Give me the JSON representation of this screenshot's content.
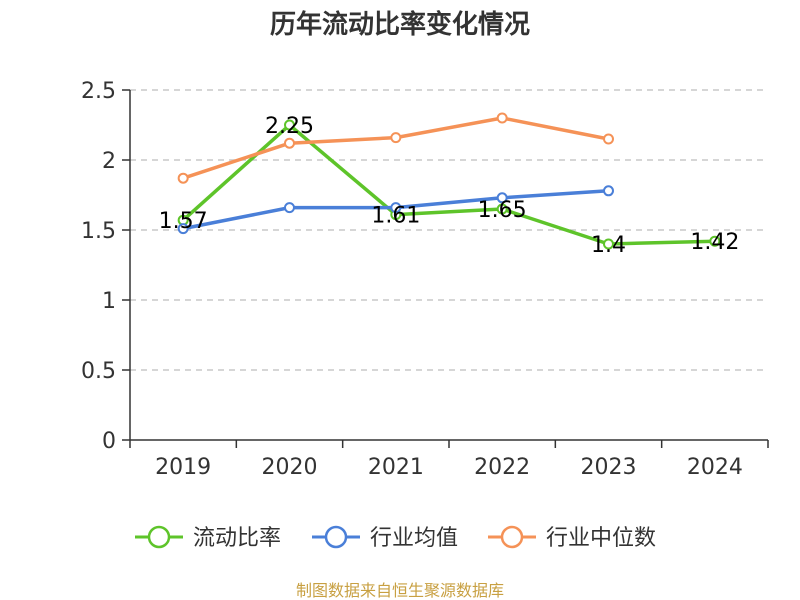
{
  "chart_data": {
    "type": "line",
    "title": "历年流动比率变化情况",
    "categories": [
      "2019",
      "2020",
      "2021",
      "2022",
      "2023",
      "2024"
    ],
    "ylim": [
      0,
      2.5
    ],
    "yticks": [
      "0",
      "0.5",
      "1",
      "1.5",
      "2",
      "2.5"
    ],
    "grid": true,
    "legend_position": "bottom",
    "series": [
      {
        "name": "流动比率",
        "color": "#5ec42a",
        "values": [
          1.57,
          2.25,
          1.61,
          1.65,
          1.4,
          1.42
        ],
        "labels": [
          "1.57",
          "2.25",
          "1.61",
          "1.65",
          "1.4",
          "1.42"
        ]
      },
      {
        "name": "行业均值",
        "color": "#4a7fd8",
        "values": [
          1.51,
          1.66,
          1.66,
          1.73,
          1.78,
          null
        ]
      },
      {
        "name": "行业中位数",
        "color": "#f59257",
        "values": [
          1.87,
          2.12,
          2.16,
          2.3,
          2.15,
          null
        ]
      }
    ]
  },
  "source": "制图数据来自恒生聚源数据库"
}
